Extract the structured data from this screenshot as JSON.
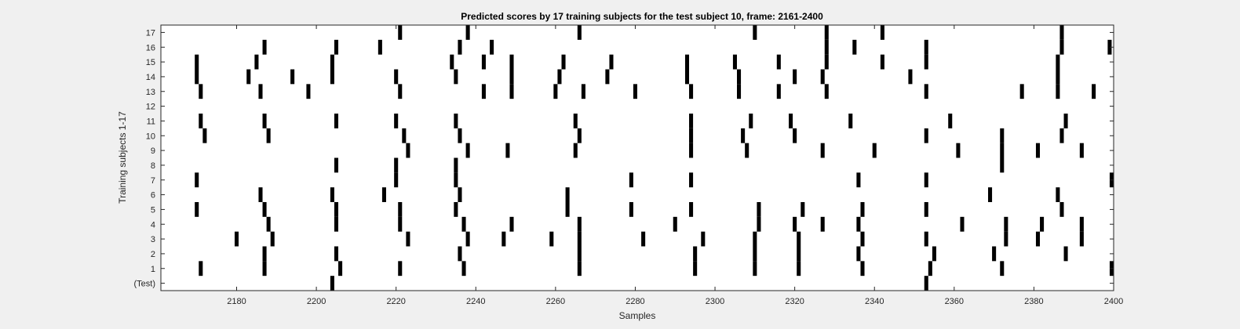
{
  "chart_data": {
    "type": "raster",
    "title": "Predicted scores by 17 training subjects for the test subject 10, frame: 2161-2400",
    "xlabel": "Samples",
    "ylabel": "Training subjects 1-17",
    "xlim": [
      2161,
      2400
    ],
    "xticks": [
      2180,
      2200,
      2220,
      2240,
      2260,
      2280,
      2300,
      2320,
      2340,
      2360,
      2380,
      2400
    ],
    "grid": false,
    "legend": "none",
    "colors": {
      "mark": "#000000",
      "plot_bg": "#ffffff",
      "figure_bg": "#f0f0f0",
      "axis": "#262626"
    },
    "rows": [
      {
        "label": "(Test)",
        "samples": [
          2204,
          2353
        ]
      },
      {
        "label": "1",
        "samples": [
          2171,
          2187,
          2206,
          2221,
          2237,
          2266,
          2295,
          2310,
          2321,
          2337,
          2354,
          2372,
          2400
        ]
      },
      {
        "label": "2",
        "samples": [
          2187,
          2205,
          2236,
          2266,
          2295,
          2310,
          2321,
          2336,
          2355,
          2370,
          2388
        ]
      },
      {
        "label": "3",
        "samples": [
          2180,
          2189,
          2223,
          2238,
          2247,
          2259,
          2266,
          2282,
          2297,
          2310,
          2321,
          2337,
          2353,
          2373,
          2381,
          2392
        ]
      },
      {
        "label": "4",
        "samples": [
          2188,
          2205,
          2221,
          2237,
          2249,
          2266,
          2290,
          2311,
          2320,
          2327,
          2336,
          2362,
          2373,
          2382,
          2392
        ]
      },
      {
        "label": "5",
        "samples": [
          2170,
          2187,
          2205,
          2221,
          2235,
          2263,
          2279,
          2294,
          2311,
          2322,
          2337,
          2353,
          2387
        ]
      },
      {
        "label": "6",
        "samples": [
          2186,
          2204,
          2217,
          2236,
          2263,
          2369,
          2386
        ]
      },
      {
        "label": "7",
        "samples": [
          2170,
          2220,
          2235,
          2279,
          2294,
          2336,
          2353,
          2400
        ]
      },
      {
        "label": "8",
        "samples": [
          2205,
          2220,
          2235,
          2372
        ]
      },
      {
        "label": "9",
        "samples": [
          2223,
          2238,
          2248,
          2265,
          2294,
          2308,
          2327,
          2340,
          2361,
          2372,
          2381,
          2392
        ]
      },
      {
        "label": "10",
        "samples": [
          2172,
          2188,
          2222,
          2236,
          2266,
          2294,
          2307,
          2320,
          2353,
          2372,
          2387
        ]
      },
      {
        "label": "11",
        "samples": [
          2171,
          2187,
          2205,
          2220,
          2235,
          2265,
          2294,
          2309,
          2319,
          2334,
          2359,
          2388
        ]
      },
      {
        "label": "12",
        "samples": []
      },
      {
        "label": "13",
        "samples": [
          2171,
          2186,
          2198,
          2221,
          2242,
          2249,
          2260,
          2267,
          2280,
          2294,
          2306,
          2316,
          2328,
          2353,
          2377,
          2386,
          2395
        ]
      },
      {
        "label": "14",
        "samples": [
          2170,
          2183,
          2194,
          2204,
          2220,
          2235,
          2249,
          2261,
          2273,
          2293,
          2306,
          2320,
          2327,
          2349,
          2386
        ]
      },
      {
        "label": "15",
        "samples": [
          2170,
          2185,
          2204,
          2234,
          2242,
          2249,
          2262,
          2274,
          2293,
          2305,
          2316,
          2328,
          2342,
          2353,
          2386
        ]
      },
      {
        "label": "16",
        "samples": [
          2187,
          2205,
          2216,
          2236,
          2244,
          2328,
          2335,
          2353,
          2387,
          2399
        ]
      },
      {
        "label": "17",
        "samples": [
          2221,
          2238,
          2266,
          2310,
          2328,
          2342,
          2387
        ]
      }
    ]
  }
}
